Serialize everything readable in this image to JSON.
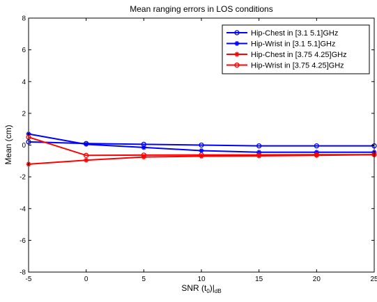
{
  "chart_data": {
    "type": "line",
    "title": "Mean ranging errors in LOS conditions",
    "xlabel": "SNR (t",
    "xlabel_sub0": "0",
    "xlabel_mid": ")|",
    "xlabel_sub1": "dB",
    "ylabel": "Mean (cm)",
    "xlim": [
      -5,
      25
    ],
    "ylim": [
      -8,
      8
    ],
    "xticks": [
      -5,
      0,
      5,
      10,
      15,
      20,
      25
    ],
    "yticks": [
      -8,
      -6,
      -4,
      -2,
      0,
      2,
      4,
      6,
      8
    ],
    "xtick_labels": [
      "-5",
      "0",
      "5",
      "10",
      "15",
      "20",
      "25"
    ],
    "ytick_labels": [
      "-8",
      "-6",
      "-4",
      "-2",
      "0",
      "2",
      "4",
      "6",
      "8"
    ],
    "grid": false,
    "legend_position": "top-right",
    "x": [
      -5,
      0,
      5,
      10,
      15,
      20,
      25
    ],
    "series": [
      {
        "name": "Hip-Chest in [3.1 5.1]GHz",
        "color": "#0000ff",
        "marker": "circle",
        "values": [
          0.2,
          0.1,
          0.05,
          0.0,
          -0.05,
          -0.05,
          -0.05
        ]
      },
      {
        "name": "Hip-Wrist in [3.1 5.1]GHz",
        "color": "#0000ff",
        "marker": "star",
        "values": [
          0.7,
          0.05,
          -0.15,
          -0.35,
          -0.45,
          -0.45,
          -0.45
        ]
      },
      {
        "name": "Hip-Chest in [3.75 4.25]GHz",
        "color": "#ff0000",
        "marker": "star",
        "values": [
          -1.2,
          -0.95,
          -0.75,
          -0.7,
          -0.68,
          -0.65,
          -0.6
        ]
      },
      {
        "name": "Hip-Wrist in [3.75 4.25]GHz",
        "color": "#ff0000",
        "marker": "circle",
        "values": [
          0.5,
          -0.65,
          -0.63,
          -0.62,
          -0.62,
          -0.6,
          -0.6
        ]
      }
    ]
  }
}
